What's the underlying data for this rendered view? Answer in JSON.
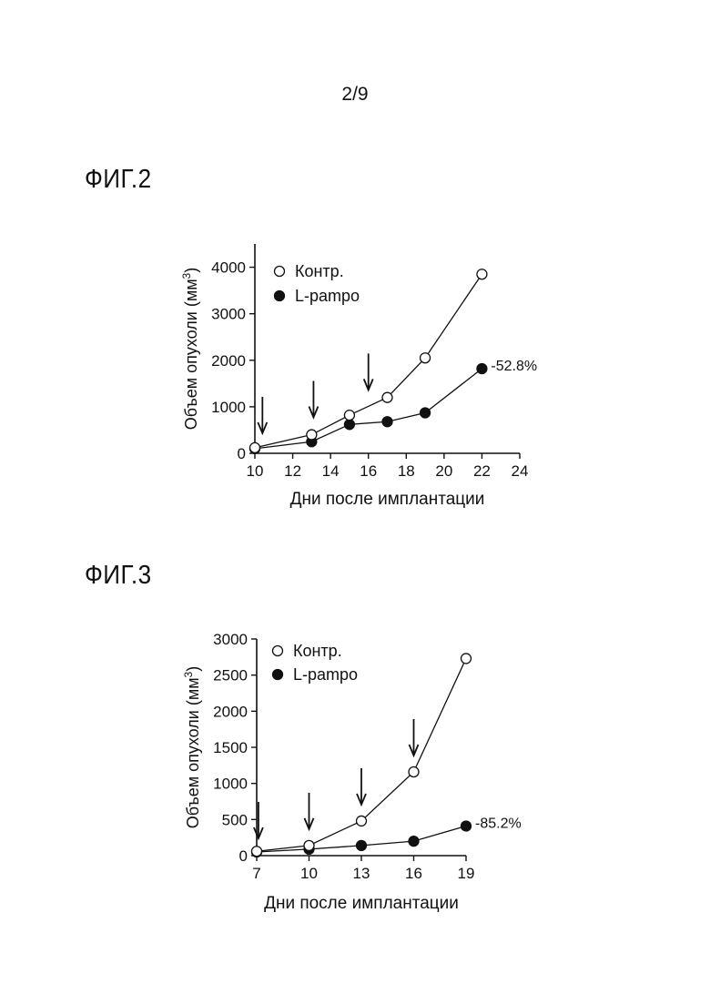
{
  "page": {
    "number": "2/9"
  },
  "figures": [
    {
      "title": "ФИГ.2"
    },
    {
      "title": "ФИГ.3"
    }
  ],
  "chart_data": [
    {
      "type": "line",
      "xlabel": "Дни после имплантации",
      "ylabel": "Объем опухоли (мм3)",
      "ylabel_main": "Объем опухоли (мм",
      "ylabel_sup": "3",
      "ylabel_end": ")",
      "xlim": [
        10,
        24
      ],
      "ylim": [
        0,
        4500
      ],
      "x_ticks": [
        10,
        12,
        14,
        16,
        18,
        20,
        22,
        24
      ],
      "y_ticks": [
        0,
        1000,
        2000,
        3000,
        4000
      ],
      "legend_position": "top-left",
      "series": [
        {
          "name": "Контр.",
          "marker": "open-circle",
          "x": [
            10,
            13,
            15,
            17,
            19,
            22
          ],
          "y": [
            120,
            400,
            820,
            1200,
            2050,
            3850
          ]
        },
        {
          "name": "L-pampo",
          "marker": "filled-circle",
          "x": [
            10,
            13,
            15,
            17,
            19,
            22
          ],
          "y": [
            100,
            250,
            620,
            680,
            870,
            1820
          ]
        }
      ],
      "dosing_arrows_x": [
        10.4,
        13.1,
        16
      ],
      "annotation": {
        "text": "-52.8%",
        "x": 22,
        "y": 1820
      }
    },
    {
      "type": "line",
      "xlabel": "Дни после имплантации",
      "ylabel": "Объем опухоли (мм3)",
      "ylabel_main": "Объем опухоли (мм",
      "ylabel_sup": "3",
      "ylabel_end": ")",
      "xlim": [
        7,
        19
      ],
      "ylim": [
        0,
        3000
      ],
      "x_ticks": [
        7,
        10,
        13,
        16,
        19
      ],
      "y_ticks": [
        0,
        500,
        1000,
        1500,
        2000,
        2500,
        3000
      ],
      "legend_position": "top-left",
      "series": [
        {
          "name": "Контр.",
          "marker": "open-circle",
          "x": [
            7,
            10,
            13,
            16,
            19
          ],
          "y": [
            60,
            140,
            480,
            1160,
            2730
          ]
        },
        {
          "name": "L-pampo",
          "marker": "filled-circle",
          "x": [
            7,
            10,
            13,
            16,
            19
          ],
          "y": [
            50,
            90,
            140,
            200,
            410
          ]
        }
      ],
      "dosing_arrows_x": [
        7.1,
        10,
        13,
        16
      ],
      "annotation": {
        "text": "-85.2%",
        "x": 19,
        "y": 410
      }
    }
  ]
}
